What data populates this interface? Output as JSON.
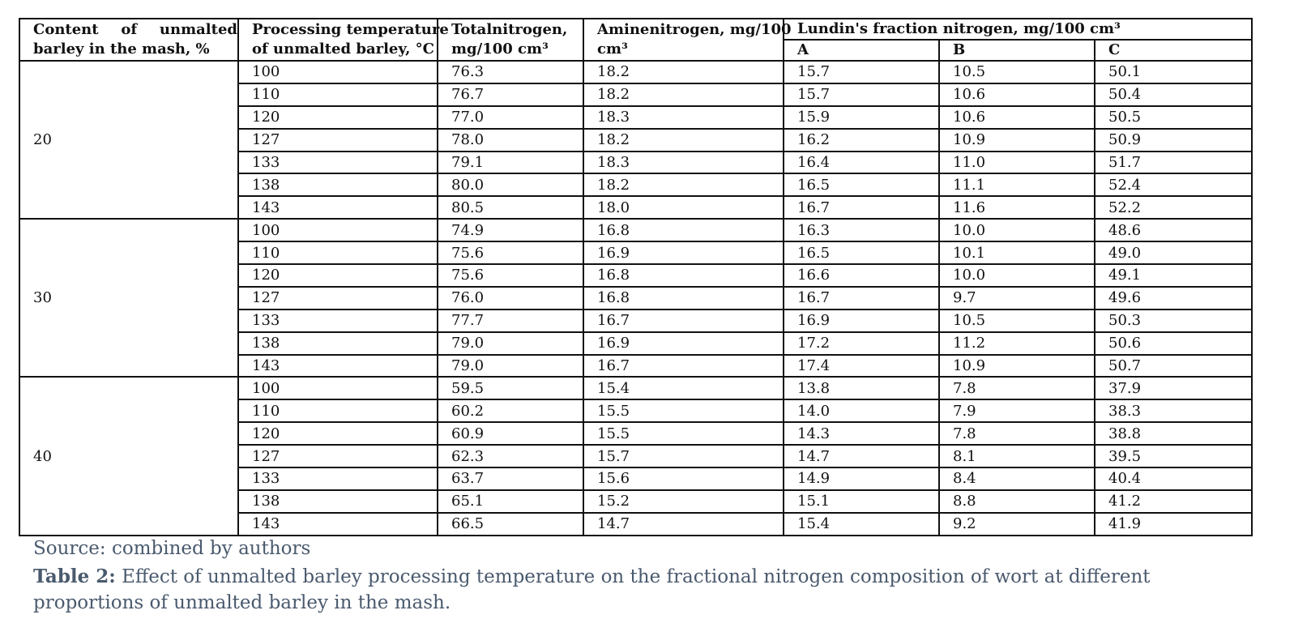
{
  "headers": {
    "content_line1_words": [
      "Content",
      "of",
      "unmalted"
    ],
    "content_line2": "barley in the mash, %",
    "processing_line1": "Processing temperature",
    "processing_line2": "of unmalted barley, °C",
    "total_line1": "Totalnitrogen,",
    "total_line2": "mg/100 cm³",
    "amine_line1": "Aminenitrogen, mg/100",
    "amine_line2": "cm³",
    "lundin": "Lundin's fraction nitrogen, mg/100 cm³",
    "col_a": "A",
    "col_b": "B",
    "col_c": "C"
  },
  "groups": [
    {
      "content": "20",
      "rows": [
        [
          "100",
          "76.3",
          "18.2",
          "15.7",
          "10.5",
          "50.1"
        ],
        [
          "110",
          "76.7",
          "18.2",
          "15.7",
          "10.6",
          "50.4"
        ],
        [
          "120",
          "77.0",
          "18.3",
          "15.9",
          "10.6",
          "50.5"
        ],
        [
          "127",
          "78.0",
          "18.2",
          "16.2",
          "10.9",
          "50.9"
        ],
        [
          "133",
          "79.1",
          "18.3",
          "16.4",
          "11.0",
          "51.7"
        ],
        [
          "138",
          "80.0",
          "18.2",
          "16.5",
          "11.1",
          "52.4"
        ],
        [
          "143",
          "80.5",
          "18.0",
          "16.7",
          "11.6",
          "52.2"
        ]
      ]
    },
    {
      "content": "30",
      "rows": [
        [
          "100",
          "74.9",
          "16.8",
          "16.3",
          "10.0",
          "48.6"
        ],
        [
          "110",
          "75.6",
          "16.9",
          "16.5",
          "10.1",
          "49.0"
        ],
        [
          "120",
          "75.6",
          "16.8",
          "16.6",
          "10.0",
          "49.1"
        ],
        [
          "127",
          "76.0",
          "16.8",
          "16.7",
          "9.7",
          "49.6"
        ],
        [
          "133",
          "77.7",
          "16.7",
          "16.9",
          "10.5",
          "50.3"
        ],
        [
          "138",
          "79.0",
          "16.9",
          "17.2",
          "11.2",
          "50.6"
        ],
        [
          "143",
          "79.0",
          "16.7",
          "17.4",
          "10.9",
          "50.7"
        ]
      ]
    },
    {
      "content": "40",
      "rows": [
        [
          "100",
          "59.5",
          "15.4",
          "13.8",
          "7.8",
          "37.9"
        ],
        [
          "110",
          "60.2",
          "15.5",
          "14.0",
          "7.9",
          "38.3"
        ],
        [
          "120",
          "60.9",
          "15.5",
          "14.3",
          "7.8",
          "38.8"
        ],
        [
          "127",
          "62.3",
          "15.7",
          "14.7",
          "8.1",
          "39.5"
        ],
        [
          "133",
          "63.7",
          "15.6",
          "14.9",
          "8.4",
          "40.4"
        ],
        [
          "138",
          "65.1",
          "15.2",
          "15.1",
          "8.8",
          "41.2"
        ],
        [
          "143",
          "66.5",
          "14.7",
          "15.4",
          "9.2",
          "41.9"
        ]
      ]
    }
  ],
  "source": "Source: combined by authors",
  "caption": {
    "label": "Table 2:",
    "text": " Effect of unmalted barley processing temperature on the fractional nitrogen composition of wort at different proportions of unmalted barley in the mash."
  }
}
